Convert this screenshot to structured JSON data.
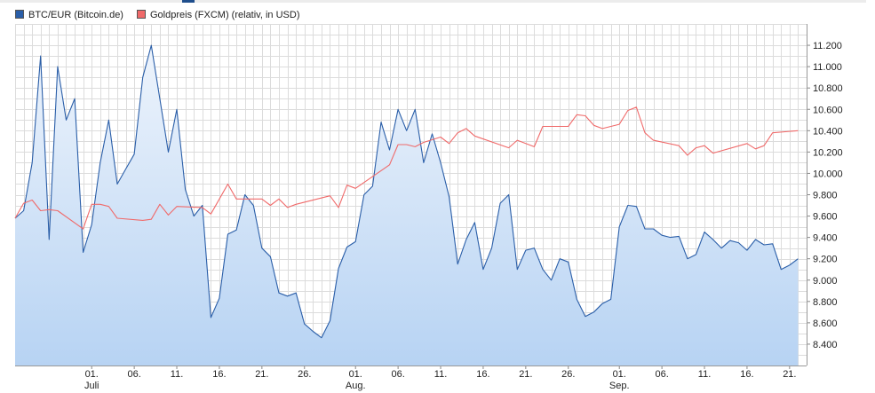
{
  "legend": [
    {
      "label": "BTC/EUR (Bitcoin.de)",
      "color": "#2a5ea8"
    },
    {
      "label": "Goldpreis (FXCM) (relativ, in USD)",
      "color": "#f06a6a"
    }
  ],
  "chart_data": {
    "type": "area",
    "title": "",
    "xlabel": "",
    "ylabel": "",
    "x_range": [
      "2017-06-22",
      "2017-09-23"
    ],
    "ylim": [
      8200,
      11400
    ],
    "y_ticks": [
      8400,
      8600,
      8800,
      9000,
      9200,
      9400,
      9600,
      9800,
      10000,
      10200,
      10400,
      10600,
      10800,
      11000,
      11200
    ],
    "y_tick_labels": [
      "8.400",
      "8.600",
      "8.800",
      "9.000",
      "9.200",
      "9.400",
      "9.600",
      "9.800",
      "10.000",
      "10.200",
      "10.400",
      "10.600",
      "10.800",
      "11.000",
      "11.200"
    ],
    "x_ticks": [
      {
        "date": "2017-07-01",
        "label": "01.",
        "month": "Juli"
      },
      {
        "date": "2017-07-06",
        "label": "06."
      },
      {
        "date": "2017-07-11",
        "label": "11."
      },
      {
        "date": "2017-07-16",
        "label": "16."
      },
      {
        "date": "2017-07-21",
        "label": "21."
      },
      {
        "date": "2017-07-26",
        "label": "26."
      },
      {
        "date": "2017-08-01",
        "label": "01.",
        "month": "Aug."
      },
      {
        "date": "2017-08-06",
        "label": "06."
      },
      {
        "date": "2017-08-11",
        "label": "11."
      },
      {
        "date": "2017-08-16",
        "label": "16."
      },
      {
        "date": "2017-08-21",
        "label": "21."
      },
      {
        "date": "2017-08-26",
        "label": "26."
      },
      {
        "date": "2017-09-01",
        "label": "01.",
        "month": "Sep."
      },
      {
        "date": "2017-09-06",
        "label": "06."
      },
      {
        "date": "2017-09-11",
        "label": "11."
      },
      {
        "date": "2017-09-16",
        "label": "16."
      },
      {
        "date": "2017-09-21",
        "label": "21."
      }
    ],
    "grid": true,
    "legend_position": "top-left",
    "series": [
      {
        "name": "BTC/EUR (Bitcoin.de)",
        "color": "#2a5ea8",
        "fill": true,
        "points": [
          [
            "2017-06-22",
            9580
          ],
          [
            "2017-06-23",
            9650
          ],
          [
            "2017-06-24",
            10100
          ],
          [
            "2017-06-25",
            11100
          ],
          [
            "2017-06-26",
            9380
          ],
          [
            "2017-06-27",
            11000
          ],
          [
            "2017-06-28",
            10500
          ],
          [
            "2017-06-29",
            10700
          ],
          [
            "2017-06-30",
            9260
          ],
          [
            "2017-07-01",
            9520
          ],
          [
            "2017-07-02",
            10100
          ],
          [
            "2017-07-03",
            10500
          ],
          [
            "2017-07-04",
            9900
          ],
          [
            "2017-07-05",
            10040
          ],
          [
            "2017-07-06",
            10180
          ],
          [
            "2017-07-07",
            10900
          ],
          [
            "2017-07-08",
            11200
          ],
          [
            "2017-07-09",
            10700
          ],
          [
            "2017-07-10",
            10200
          ],
          [
            "2017-07-11",
            10600
          ],
          [
            "2017-07-12",
            9850
          ],
          [
            "2017-07-13",
            9600
          ],
          [
            "2017-07-14",
            9700
          ],
          [
            "2017-07-15",
            8650
          ],
          [
            "2017-07-16",
            8830
          ],
          [
            "2017-07-17",
            9430
          ],
          [
            "2017-07-18",
            9470
          ],
          [
            "2017-07-19",
            9800
          ],
          [
            "2017-07-20",
            9700
          ],
          [
            "2017-07-21",
            9300
          ],
          [
            "2017-07-22",
            9220
          ],
          [
            "2017-07-23",
            8880
          ],
          [
            "2017-07-24",
            8850
          ],
          [
            "2017-07-25",
            8880
          ],
          [
            "2017-07-26",
            8590
          ],
          [
            "2017-07-27",
            8520
          ],
          [
            "2017-07-28",
            8460
          ],
          [
            "2017-07-29",
            8620
          ],
          [
            "2017-07-30",
            9110
          ],
          [
            "2017-07-31",
            9310
          ],
          [
            "2017-08-01",
            9360
          ],
          [
            "2017-08-02",
            9800
          ],
          [
            "2017-08-03",
            9880
          ],
          [
            "2017-08-04",
            10480
          ],
          [
            "2017-08-05",
            10220
          ],
          [
            "2017-08-06",
            10600
          ],
          [
            "2017-08-07",
            10400
          ],
          [
            "2017-08-08",
            10600
          ],
          [
            "2017-08-09",
            10100
          ],
          [
            "2017-08-10",
            10370
          ],
          [
            "2017-08-11",
            10100
          ],
          [
            "2017-08-12",
            9780
          ],
          [
            "2017-08-13",
            9150
          ],
          [
            "2017-08-14",
            9380
          ],
          [
            "2017-08-15",
            9540
          ],
          [
            "2017-08-16",
            9100
          ],
          [
            "2017-08-17",
            9300
          ],
          [
            "2017-08-18",
            9720
          ],
          [
            "2017-08-19",
            9800
          ],
          [
            "2017-08-20",
            9100
          ],
          [
            "2017-08-21",
            9280
          ],
          [
            "2017-08-22",
            9300
          ],
          [
            "2017-08-23",
            9100
          ],
          [
            "2017-08-24",
            9000
          ],
          [
            "2017-08-25",
            9200
          ],
          [
            "2017-08-26",
            9170
          ],
          [
            "2017-08-27",
            8820
          ],
          [
            "2017-08-28",
            8660
          ],
          [
            "2017-08-29",
            8700
          ],
          [
            "2017-08-30",
            8780
          ],
          [
            "2017-08-31",
            8820
          ],
          [
            "2017-09-01",
            9500
          ],
          [
            "2017-09-02",
            9700
          ],
          [
            "2017-09-03",
            9690
          ],
          [
            "2017-09-04",
            9480
          ],
          [
            "2017-09-05",
            9480
          ],
          [
            "2017-09-06",
            9420
          ],
          [
            "2017-09-07",
            9400
          ],
          [
            "2017-09-08",
            9410
          ],
          [
            "2017-09-09",
            9200
          ],
          [
            "2017-09-10",
            9240
          ],
          [
            "2017-09-11",
            9450
          ],
          [
            "2017-09-12",
            9380
          ],
          [
            "2017-09-13",
            9300
          ],
          [
            "2017-09-14",
            9370
          ],
          [
            "2017-09-15",
            9350
          ],
          [
            "2017-09-16",
            9280
          ],
          [
            "2017-09-17",
            9380
          ],
          [
            "2017-09-18",
            9330
          ],
          [
            "2017-09-19",
            9340
          ],
          [
            "2017-09-20",
            9100
          ],
          [
            "2017-09-21",
            9140
          ],
          [
            "2017-09-22",
            9200
          ]
        ]
      },
      {
        "name": "Goldpreis (FXCM) (relativ, in USD)",
        "color": "#f06a6a",
        "fill": false,
        "points": [
          [
            "2017-06-22",
            9580
          ],
          [
            "2017-06-23",
            9720
          ],
          [
            "2017-06-24",
            9750
          ],
          [
            "2017-06-25",
            9650
          ],
          [
            "2017-06-26",
            9660
          ],
          [
            "2017-06-27",
            9650
          ],
          [
            "2017-06-30",
            9480
          ],
          [
            "2017-07-01",
            9710
          ],
          [
            "2017-07-02",
            9710
          ],
          [
            "2017-07-03",
            9690
          ],
          [
            "2017-07-04",
            9580
          ],
          [
            "2017-07-07",
            9560
          ],
          [
            "2017-07-08",
            9570
          ],
          [
            "2017-07-09",
            9710
          ],
          [
            "2017-07-10",
            9610
          ],
          [
            "2017-07-11",
            9690
          ],
          [
            "2017-07-14",
            9680
          ],
          [
            "2017-07-15",
            9620
          ],
          [
            "2017-07-17",
            9900
          ],
          [
            "2017-07-18",
            9760
          ],
          [
            "2017-07-19",
            9760
          ],
          [
            "2017-07-21",
            9760
          ],
          [
            "2017-07-22",
            9700
          ],
          [
            "2017-07-23",
            9760
          ],
          [
            "2017-07-24",
            9680
          ],
          [
            "2017-07-25",
            9710
          ],
          [
            "2017-07-29",
            9790
          ],
          [
            "2017-07-30",
            9680
          ],
          [
            "2017-07-31",
            9890
          ],
          [
            "2017-08-01",
            9860
          ],
          [
            "2017-08-05",
            10080
          ],
          [
            "2017-08-06",
            10270
          ],
          [
            "2017-08-07",
            10270
          ],
          [
            "2017-08-08",
            10250
          ],
          [
            "2017-08-09",
            10290
          ],
          [
            "2017-08-11",
            10340
          ],
          [
            "2017-08-12",
            10280
          ],
          [
            "2017-08-13",
            10380
          ],
          [
            "2017-08-14",
            10420
          ],
          [
            "2017-08-15",
            10350
          ],
          [
            "2017-08-19",
            10240
          ],
          [
            "2017-08-20",
            10310
          ],
          [
            "2017-08-22",
            10250
          ],
          [
            "2017-08-23",
            10440
          ],
          [
            "2017-08-26",
            10440
          ],
          [
            "2017-08-27",
            10550
          ],
          [
            "2017-08-28",
            10540
          ],
          [
            "2017-08-29",
            10450
          ],
          [
            "2017-08-30",
            10420
          ],
          [
            "2017-09-01",
            10460
          ],
          [
            "2017-09-02",
            10590
          ],
          [
            "2017-09-03",
            10620
          ],
          [
            "2017-09-04",
            10380
          ],
          [
            "2017-09-05",
            10310
          ],
          [
            "2017-09-08",
            10260
          ],
          [
            "2017-09-09",
            10170
          ],
          [
            "2017-09-10",
            10240
          ],
          [
            "2017-09-11",
            10260
          ],
          [
            "2017-09-12",
            10190
          ],
          [
            "2017-09-16",
            10280
          ],
          [
            "2017-09-17",
            10230
          ],
          [
            "2017-09-18",
            10260
          ],
          [
            "2017-09-19",
            10380
          ],
          [
            "2017-09-22",
            10400
          ]
        ]
      }
    ]
  }
}
